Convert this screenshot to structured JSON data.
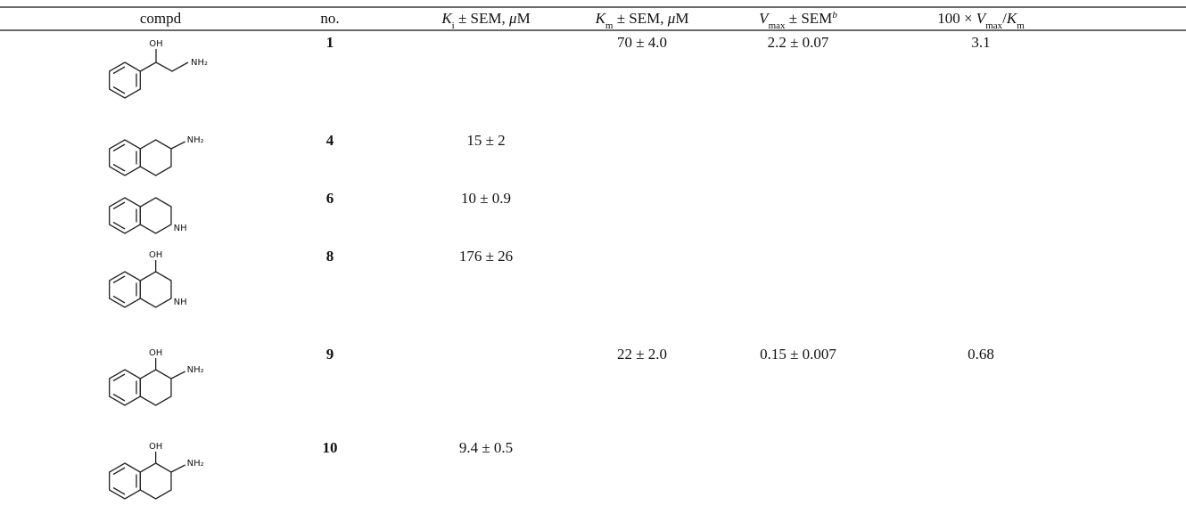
{
  "table": {
    "headers": [
      {
        "parts": [
          {
            "text": "compd",
            "style": "normal"
          }
        ]
      },
      {
        "parts": [
          {
            "text": "no.",
            "style": "normal"
          }
        ]
      },
      {
        "parts": [
          {
            "text": "K",
            "style": "italic"
          },
          {
            "text": "i",
            "style": "sub"
          },
          {
            "text": " ± SEM, ",
            "style": "normal"
          },
          {
            "text": "μ",
            "style": "italic"
          },
          {
            "text": "M",
            "style": "normal"
          }
        ]
      },
      {
        "parts": [
          {
            "text": "K",
            "style": "italic"
          },
          {
            "text": "m",
            "style": "sub"
          },
          {
            "text": " ± SEM, ",
            "style": "normal"
          },
          {
            "text": "μ",
            "style": "italic"
          },
          {
            "text": "M",
            "style": "normal"
          }
        ]
      },
      {
        "parts": [
          {
            "text": "V",
            "style": "italic"
          },
          {
            "text": "max",
            "style": "sub"
          },
          {
            "text": " ± SEM",
            "style": "normal"
          },
          {
            "text": "b",
            "style": "sup"
          }
        ]
      },
      {
        "parts": [
          {
            "text": "100 × ",
            "style": "normal"
          },
          {
            "text": "V",
            "style": "italic"
          },
          {
            "text": "max",
            "style": "sub"
          },
          {
            "text": "/",
            "style": "normal"
          },
          {
            "text": "K",
            "style": "italic"
          },
          {
            "text": "m",
            "style": "sub"
          }
        ]
      }
    ],
    "rows": [
      {
        "no": "1",
        "structure_labels": [
          "OH",
          "NH₂"
        ],
        "km": "70 ± 4.0",
        "vmax": "2.2 ± 0.07",
        "ratio": "3.1"
      },
      {
        "no": "4",
        "structure_labels": [
          "NH₂"
        ],
        "ki": "15 ± 2"
      },
      {
        "no": "6",
        "structure_labels": [
          "NH"
        ],
        "ki": "10 ± 0.9"
      },
      {
        "no": "8",
        "structure_labels": [
          "OH",
          "NH"
        ],
        "ki": "176 ± 26"
      },
      {
        "no": "9",
        "structure_labels": [
          "OH",
          "NH₂"
        ],
        "km": "22 ± 2.0",
        "vmax": "0.15 ± 0.007",
        "ratio": "0.68"
      },
      {
        "no": "10",
        "structure_labels": [
          "OH",
          "NH₂"
        ],
        "ki": "9.4 ± 0.5"
      }
    ]
  }
}
